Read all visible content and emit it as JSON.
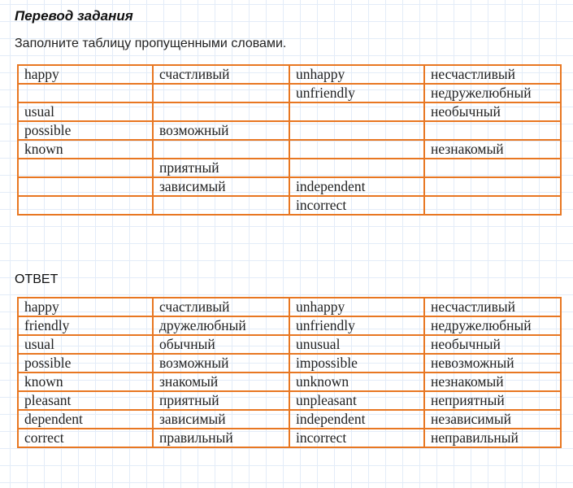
{
  "heading": "Перевод задания",
  "instruction": "Заполните таблицу пропущенными словами.",
  "answer_label": "ОТВЕТ",
  "colors": {
    "table_border": "#e87722",
    "grid": "#e3ecf8"
  },
  "task_table": {
    "rows": [
      [
        "happy",
        "счастливый",
        "unhappy",
        "несчастливый"
      ],
      [
        "",
        "",
        "unfriendly",
        "недружелюбный"
      ],
      [
        "usual",
        "",
        "",
        "необычный"
      ],
      [
        "possible",
        "возможный",
        "",
        ""
      ],
      [
        "known",
        "",
        "",
        "незнакомый"
      ],
      [
        "",
        "приятный",
        "",
        ""
      ],
      [
        "",
        "зависимый",
        "independent",
        ""
      ],
      [
        "",
        "",
        "incorrect",
        ""
      ]
    ]
  },
  "answer_table": {
    "rows": [
      [
        "happy",
        "счастливый",
        "unhappy",
        "несчастливый"
      ],
      [
        "friendly",
        "дружелюбный",
        "unfriendly",
        "недружелюбный"
      ],
      [
        "usual",
        "обычный",
        "unusual",
        "необычный"
      ],
      [
        "possible",
        "возможный",
        "impossible",
        "невозможный"
      ],
      [
        "known",
        "знакомый",
        "unknown",
        "незнакомый"
      ],
      [
        "pleasant",
        "приятный",
        "unpleasant",
        "неприятный"
      ],
      [
        "dependent",
        "зависимый",
        "independent",
        "независимый"
      ],
      [
        "correct",
        "правильный",
        "incorrect",
        "неправильный"
      ]
    ]
  }
}
